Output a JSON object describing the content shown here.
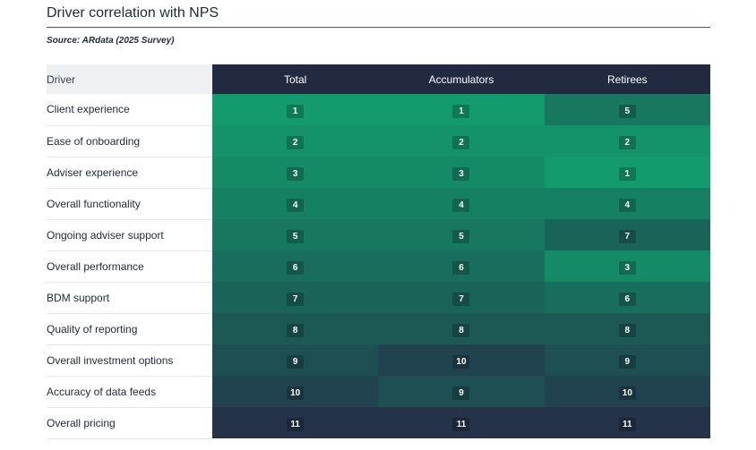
{
  "title": "Driver correlation with NPS",
  "source": "Source: ARdata (2025 Survey)",
  "chart_data": {
    "type": "heatmap",
    "title": "Driver correlation with NPS",
    "row_header": "Driver",
    "columns": [
      "Total",
      "Accumulators",
      "Retirees"
    ],
    "rows": [
      "Client experience",
      "Ease of onboarding",
      "Adviser experience",
      "Overall functionality",
      "Ongoing adviser support",
      "Overall performance",
      "BDM support",
      "Quality of reporting",
      "Overall investment options",
      "Accuracy of data feeds",
      "Overall pricing"
    ],
    "values": [
      [
        1,
        1,
        5
      ],
      [
        2,
        2,
        2
      ],
      [
        3,
        3,
        1
      ],
      [
        4,
        4,
        4
      ],
      [
        5,
        5,
        7
      ],
      [
        6,
        6,
        3
      ],
      [
        7,
        7,
        6
      ],
      [
        8,
        8,
        8
      ],
      [
        9,
        10,
        9
      ],
      [
        10,
        9,
        10
      ],
      [
        11,
        11,
        11
      ]
    ],
    "color_scale": {
      "1": "#139b6e",
      "2": "#14926a",
      "3": "#158a67",
      "4": "#168063",
      "5": "#17775f",
      "6": "#196d5c",
      "7": "#1a6359",
      "8": "#1c5955",
      "9": "#1e4f52",
      "10": "#21434f",
      "11": "#243349"
    }
  }
}
